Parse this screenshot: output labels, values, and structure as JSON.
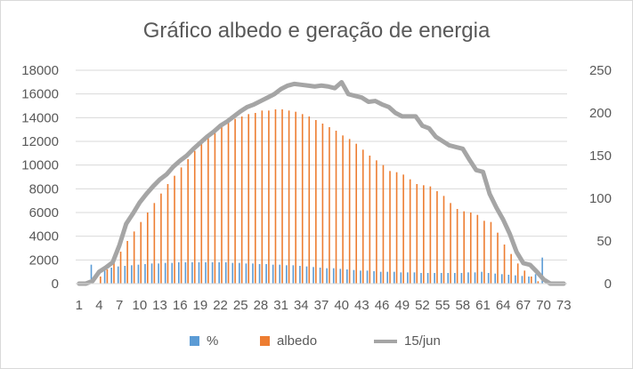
{
  "chart_data": {
    "type": "bar",
    "title": "Gráfico albedo e geração de energia",
    "x": [
      1,
      2,
      3,
      4,
      5,
      6,
      7,
      8,
      9,
      10,
      11,
      12,
      13,
      14,
      15,
      16,
      17,
      18,
      19,
      20,
      21,
      22,
      23,
      24,
      25,
      26,
      27,
      28,
      29,
      30,
      31,
      32,
      33,
      34,
      35,
      36,
      37,
      38,
      39,
      40,
      41,
      42,
      43,
      44,
      45,
      46,
      47,
      48,
      49,
      50,
      51,
      52,
      53,
      54,
      55,
      56,
      57,
      58,
      59,
      60,
      61,
      62,
      63,
      64,
      65,
      66,
      67,
      68,
      69,
      70,
      71,
      72,
      73
    ],
    "x_tick_labels": [
      "1",
      "4",
      "7",
      "10",
      "13",
      "16",
      "19",
      "22",
      "25",
      "28",
      "31",
      "34",
      "37",
      "40",
      "43",
      "46",
      "49",
      "52",
      "55",
      "58",
      "61",
      "64",
      "67",
      "70",
      "73"
    ],
    "y_left": {
      "range": [
        0,
        18000
      ],
      "ticks": [
        "0",
        "2000",
        "4000",
        "6000",
        "8000",
        "10000",
        "12000",
        "14000",
        "16000",
        "18000"
      ]
    },
    "y_right": {
      "range": [
        0,
        250
      ],
      "ticks": [
        "0",
        "50",
        "100",
        "150",
        "200",
        "250"
      ]
    },
    "gridlines": true,
    "legend_position": "bottom",
    "series": [
      {
        "name": "%",
        "type": "bar",
        "axis": "left",
        "color": "#5b9bd5",
        "values": [
          0,
          0,
          1600,
          0,
          1100,
          1350,
          1450,
          1500,
          1550,
          1600,
          1650,
          1700,
          1700,
          1750,
          1750,
          1800,
          1800,
          1800,
          1800,
          1800,
          1800,
          1800,
          1800,
          1750,
          1750,
          1700,
          1700,
          1650,
          1650,
          1600,
          1600,
          1550,
          1550,
          1500,
          1450,
          1400,
          1350,
          1300,
          1300,
          1250,
          1200,
          1150,
          1100,
          1100,
          1050,
          1000,
          1000,
          1000,
          950,
          950,
          950,
          900,
          900,
          900,
          900,
          900,
          900,
          900,
          950,
          950,
          1000,
          900,
          850,
          800,
          750,
          700,
          650,
          600,
          800,
          2200,
          0,
          0,
          0
        ]
      },
      {
        "name": "albedo",
        "type": "bar",
        "axis": "left",
        "color": "#ed7d31",
        "values": [
          0,
          0,
          0,
          600,
          1200,
          1900,
          2700,
          3600,
          4400,
          5200,
          6000,
          6800,
          7600,
          8400,
          9100,
          9800,
          10500,
          11200,
          11800,
          12300,
          12800,
          13200,
          13600,
          13900,
          14100,
          14300,
          14400,
          14600,
          14600,
          14700,
          14700,
          14600,
          14500,
          14300,
          14100,
          13800,
          13500,
          13200,
          12900,
          12500,
          12200,
          11800,
          11300,
          10800,
          10400,
          10000,
          9500,
          9400,
          9200,
          8800,
          8400,
          8300,
          8200,
          7800,
          7400,
          6800,
          6300,
          6100,
          6000,
          5800,
          5300,
          5200,
          4300,
          3300,
          2500,
          1700,
          1100,
          600,
          200,
          0,
          0,
          0,
          0
        ]
      },
      {
        "name": "15/jun",
        "type": "line",
        "axis": "right",
        "color": "#a5a5a5",
        "values": [
          0,
          0,
          3,
          14,
          19,
          25,
          45,
          70,
          82,
          95,
          105,
          114,
          122,
          128,
          137,
          144,
          150,
          158,
          165,
          172,
          178,
          185,
          190,
          196,
          202,
          207,
          210,
          214,
          218,
          222,
          228,
          232,
          234,
          233,
          232,
          231,
          232,
          231,
          229,
          236,
          222,
          220,
          218,
          213,
          214,
          210,
          207,
          200,
          196,
          196,
          196,
          185,
          182,
          172,
          167,
          162,
          160,
          158,
          145,
          133,
          131,
          105,
          89,
          75,
          58,
          37,
          24,
          22,
          14,
          5,
          0,
          0,
          0
        ]
      }
    ]
  }
}
